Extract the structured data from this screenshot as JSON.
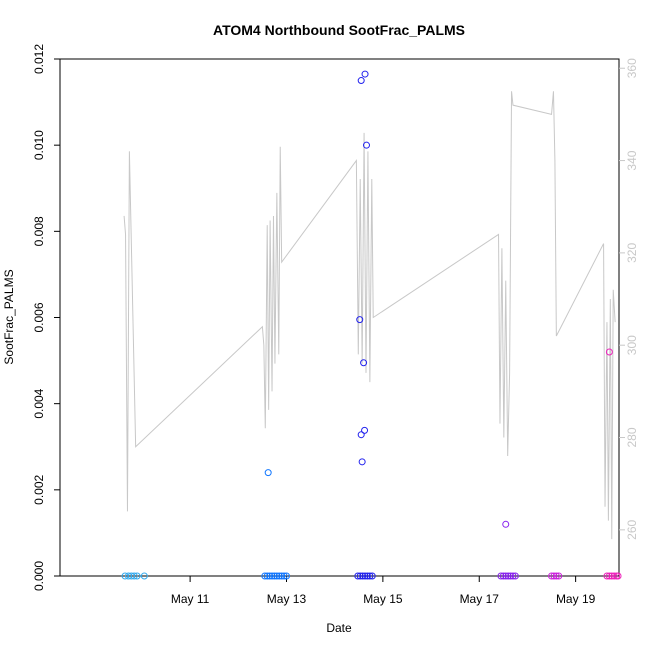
{
  "chart_data": {
    "type": "scatter",
    "title": "ATOM4 Northbound SootFrac_PALMS",
    "xlabel": "Date",
    "ylabel": "SootFrac_PALMS",
    "x_ticks": [
      "May 11",
      "May 13",
      "May 15",
      "May 17",
      "May 19"
    ],
    "x_range_days": [
      8.3,
      19.9
    ],
    "y_ticks": [
      "0.000",
      "0.002",
      "0.004",
      "0.006",
      "0.008",
      "0.010",
      "0.012"
    ],
    "ylim": [
      0,
      0.012
    ],
    "y2_ticks": [
      "260",
      "280",
      "300",
      "320",
      "340",
      "360"
    ],
    "y2lim": [
      250,
      362
    ],
    "colors": {
      "secondary_line": "#c8c8c8",
      "axis": "#000000",
      "right_axis": "#c8c8c8"
    },
    "series": [
      {
        "kind": "points",
        "values_day_y": [
          [
            9.65,
            0,
            "#33aaee"
          ],
          [
            9.72,
            0,
            "#33aaee"
          ],
          [
            9.78,
            0,
            "#33aaee"
          ],
          [
            9.84,
            0,
            "#33aaee"
          ],
          [
            9.9,
            0,
            "#33aaee"
          ],
          [
            10.05,
            0,
            "#33aaee"
          ],
          [
            12.55,
            0,
            "#1177ff"
          ],
          [
            12.6,
            0,
            "#1177ff"
          ],
          [
            12.65,
            0,
            "#1177ff"
          ],
          [
            12.7,
            0,
            "#1177ff"
          ],
          [
            12.75,
            0,
            "#1177ff"
          ],
          [
            12.8,
            0,
            "#1177ff"
          ],
          [
            12.85,
            0,
            "#1177ff"
          ],
          [
            12.9,
            0,
            "#1177ff"
          ],
          [
            12.95,
            0,
            "#1177ff"
          ],
          [
            13.0,
            0,
            "#1177ff"
          ],
          [
            12.62,
            0.0024,
            "#1177ff"
          ],
          [
            14.48,
            0,
            "#2222ee"
          ],
          [
            14.53,
            0,
            "#2222ee"
          ],
          [
            14.58,
            0,
            "#2222ee"
          ],
          [
            14.63,
            0,
            "#2222ee"
          ],
          [
            14.68,
            0,
            "#2222ee"
          ],
          [
            14.73,
            0,
            "#2222ee"
          ],
          [
            14.78,
            0,
            "#2222ee"
          ],
          [
            14.55,
            0.0115,
            "#2222ee"
          ],
          [
            14.63,
            0.01165,
            "#2222ee"
          ],
          [
            14.66,
            0.01,
            "#2222ee"
          ],
          [
            14.52,
            0.00595,
            "#2222ee"
          ],
          [
            14.6,
            0.00495,
            "#2222ee"
          ],
          [
            14.62,
            0.00338,
            "#2222ee"
          ],
          [
            14.55,
            0.00328,
            "#2222ee"
          ],
          [
            14.57,
            0.00265,
            "#2222ee"
          ],
          [
            17.45,
            0,
            "#8822ee"
          ],
          [
            17.5,
            0,
            "#8822ee"
          ],
          [
            17.55,
            0,
            "#8822ee"
          ],
          [
            17.6,
            0,
            "#8822ee"
          ],
          [
            17.65,
            0,
            "#8822ee"
          ],
          [
            17.7,
            0,
            "#8822ee"
          ],
          [
            17.75,
            0,
            "#8822ee"
          ],
          [
            17.55,
            0.0012,
            "#8822ee"
          ],
          [
            18.5,
            0,
            "#cc22dd"
          ],
          [
            18.55,
            0,
            "#cc22dd"
          ],
          [
            18.6,
            0,
            "#cc22dd"
          ],
          [
            18.65,
            0,
            "#cc22dd"
          ],
          [
            19.65,
            0,
            "#ee22bb"
          ],
          [
            19.7,
            0,
            "#ee22bb"
          ],
          [
            19.75,
            0,
            "#ee22bb"
          ],
          [
            19.8,
            0,
            "#ee22bb"
          ],
          [
            19.85,
            0,
            "#ee22bb"
          ],
          [
            19.88,
            0,
            "#ee22bb"
          ],
          [
            19.7,
            0.0052,
            "#ee22bb"
          ]
        ]
      },
      {
        "kind": "line",
        "axis": "right",
        "values_day_y2": [
          [
            9.63,
            328
          ],
          [
            9.66,
            324
          ],
          [
            9.7,
            264
          ],
          [
            9.74,
            342
          ],
          [
            9.87,
            278
          ],
          [
            12.5,
            304
          ],
          [
            12.53,
            300
          ],
          [
            12.56,
            282
          ],
          [
            12.6,
            326
          ],
          [
            12.63,
            286
          ],
          [
            12.66,
            327
          ],
          [
            12.7,
            290
          ],
          [
            12.73,
            328
          ],
          [
            12.76,
            296
          ],
          [
            12.8,
            333
          ],
          [
            12.84,
            298
          ],
          [
            12.87,
            343
          ],
          [
            12.9,
            318
          ],
          [
            14.45,
            340
          ],
          [
            14.49,
            298
          ],
          [
            14.53,
            336
          ],
          [
            14.57,
            296
          ],
          [
            14.61,
            346
          ],
          [
            14.65,
            294
          ],
          [
            14.69,
            342
          ],
          [
            14.73,
            292
          ],
          [
            14.77,
            336
          ],
          [
            14.8,
            306
          ],
          [
            17.4,
            324
          ],
          [
            17.43,
            283
          ],
          [
            17.47,
            321
          ],
          [
            17.51,
            280
          ],
          [
            17.55,
            314
          ],
          [
            17.59,
            276
          ],
          [
            17.63,
            294
          ],
          [
            17.67,
            355
          ],
          [
            17.7,
            352
          ],
          [
            18.5,
            350
          ],
          [
            18.54,
            355
          ],
          [
            18.57,
            340
          ],
          [
            18.6,
            302
          ],
          [
            19.58,
            322
          ],
          [
            19.61,
            265
          ],
          [
            19.65,
            305
          ],
          [
            19.68,
            262
          ],
          [
            19.72,
            310
          ],
          [
            19.75,
            258
          ],
          [
            19.78,
            312
          ],
          [
            19.82,
            305
          ]
        ]
      }
    ]
  }
}
